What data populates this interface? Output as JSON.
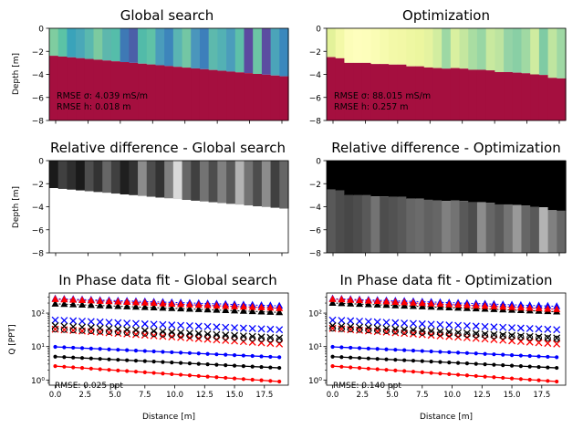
{
  "chart_data": [
    {
      "type": "heatmap",
      "title": "Global search",
      "ylabel": "Depth [m]",
      "yticks": [
        "0",
        "−2",
        "−4",
        "−6",
        "−8"
      ],
      "ylim": [
        -8,
        0
      ],
      "xlim": [
        0,
        20
      ],
      "layer_color": "#a50f3f",
      "column_colors": [
        "#7fcda0",
        "#5bc3a6",
        "#3aa3ba",
        "#4aa8b8",
        "#5ab8af",
        "#7ccaa0",
        "#5db7ad",
        "#55bdaa",
        "#3e79b5",
        "#4b5fa8",
        "#52bba9",
        "#5fc2a7",
        "#4a9cbb",
        "#3d85bb",
        "#5ab4b3",
        "#73c6a4",
        "#4a96bc",
        "#3d7fbb",
        "#5db9ad",
        "#53b1b4",
        "#4b9dbb",
        "#5ec0a9",
        "#5c4aa0",
        "#6cc5a5",
        "#5b4da1",
        "#4ba4b9",
        "#3a88bd"
      ],
      "boundary_depth": [
        -2.35,
        -4.2
      ],
      "annotations": [
        "RMSE σ: 4.039 mS/m",
        "RMSE h: 0.018 m"
      ]
    },
    {
      "type": "heatmap",
      "title": "Optimization",
      "yticks": [
        "0",
        "−2",
        "−4",
        "−6",
        "−8"
      ],
      "ylim": [
        -8,
        0
      ],
      "xlim": [
        0,
        20
      ],
      "layer_color": "#a50f3f",
      "column_colors": [
        "#e3f29a",
        "#f3f9a8",
        "#fcfdb9",
        "#fefebd",
        "#fdfebb",
        "#fafdb5",
        "#f6fbae",
        "#f3f9a8",
        "#f2f8a6",
        "#eef7a2",
        "#ecf69f",
        "#e5f3a0",
        "#d2eda0",
        "#9dd8a4",
        "#d9f0a0",
        "#c4e79f",
        "#a9dda2",
        "#98d6a4",
        "#c8e99f",
        "#bde4a0",
        "#94d3a6",
        "#89cfa5",
        "#a0d9a3",
        "#cfeca0",
        "#7fcba4",
        "#bfe5a0",
        "#9fd8a4"
      ],
      "step_depths": [
        -2.5,
        -2.6,
        -3.0,
        -3.0,
        -3.0,
        -3.1,
        -3.1,
        -3.15,
        -3.15,
        -3.3,
        -3.3,
        -3.4,
        -3.45,
        -3.5,
        -3.45,
        -3.5,
        -3.6,
        -3.6,
        -3.65,
        -3.8,
        -3.8,
        -3.85,
        -3.9,
        -4.0,
        -4.05,
        -4.3,
        -4.35
      ],
      "annotations": [
        "RMSE σ: 88.015 mS/m",
        "RMSE h: 0.257 m"
      ]
    },
    {
      "type": "heatmap",
      "title": "Relative difference - Global search",
      "ylabel": "Depth [m]",
      "yticks": [
        "0",
        "−2",
        "−4",
        "−6",
        "−8"
      ],
      "ylim": [
        -8,
        0
      ],
      "xlim": [
        0,
        20
      ],
      "boundary_depth": [
        -2.35,
        -4.2
      ],
      "upper_intensity": [
        0.1,
        0.25,
        0.18,
        0.1,
        0.3,
        0.2,
        0.4,
        0.25,
        0.12,
        0.2,
        0.55,
        0.3,
        0.2,
        0.5,
        0.85,
        0.4,
        0.25,
        0.45,
        0.3,
        0.5,
        0.35,
        0.7,
        0.45,
        0.3,
        0.55,
        0.25,
        0.4
      ],
      "lower_intensity": 1.0
    },
    {
      "type": "heatmap",
      "title": "Relative difference - Optimization",
      "yticks": [
        "0",
        "−2",
        "−4",
        "−6",
        "−8"
      ],
      "ylim": [
        -8,
        0
      ],
      "xlim": [
        0,
        20
      ],
      "step_depths": [
        -2.5,
        -2.6,
        -3.0,
        -3.0,
        -3.0,
        -3.1,
        -3.1,
        -3.15,
        -3.15,
        -3.3,
        -3.3,
        -3.4,
        -3.45,
        -3.5,
        -3.45,
        -3.5,
        -3.6,
        -3.6,
        -3.65,
        -3.8,
        -3.8,
        -3.85,
        -3.9,
        -4.0,
        -4.05,
        -4.3,
        -4.35
      ],
      "upper_intensity": 0.0,
      "lower_intensity": [
        0.35,
        0.3,
        0.28,
        0.3,
        0.35,
        0.45,
        0.3,
        0.32,
        0.35,
        0.4,
        0.42,
        0.38,
        0.4,
        0.5,
        0.45,
        0.35,
        0.3,
        0.55,
        0.4,
        0.35,
        0.45,
        0.6,
        0.4,
        0.35,
        0.7,
        0.5,
        0.4
      ]
    },
    {
      "type": "scatter",
      "title": "In Phase data fit - Global search",
      "xlabel": "Distance [m]",
      "ylabel": "Q [PPT]",
      "yscale": "log",
      "ylim": [
        0.7,
        400
      ],
      "xlim": [
        -0.5,
        19.5
      ],
      "xticks": [
        "0.0",
        "2.5",
        "5.0",
        "7.5",
        "10.0",
        "12.5",
        "15.0",
        "17.5"
      ],
      "yticks": [
        "10⁰",
        "10¹",
        "10²"
      ],
      "x": [
        0,
        0.75,
        1.5,
        2.25,
        3,
        3.75,
        4.5,
        5.25,
        6,
        6.75,
        7.5,
        8.25,
        9,
        9.75,
        10.5,
        11.25,
        12,
        12.75,
        13.5,
        14.25,
        15,
        15.75,
        16.5,
        17.25,
        18,
        18.75
      ],
      "series": [
        {
          "marker": "triangle",
          "color": "#0000ff",
          "start": 270,
          "end": 165
        },
        {
          "marker": "triangle",
          "color": "#000000",
          "start": 190,
          "end": 105
        },
        {
          "marker": "triangle",
          "color": "#ff0000",
          "start": 260,
          "end": 140
        },
        {
          "marker": "x",
          "color": "#0000ff",
          "start": 62,
          "end": 32
        },
        {
          "marker": "x",
          "color": "#000000",
          "start": 42,
          "end": 18
        },
        {
          "marker": "x",
          "color": "#ff0000",
          "start": 33,
          "end": 12
        },
        {
          "marker": "circle-open",
          "color": "#000000",
          "start": 33,
          "end": 16
        },
        {
          "marker": "line-dot",
          "color": "#0000ff",
          "start": 9.8,
          "end": 4.8
        },
        {
          "marker": "line-dot",
          "color": "#000000",
          "start": 5.0,
          "end": 2.3
        },
        {
          "marker": "line-dot",
          "color": "#ff0000",
          "start": 2.6,
          "end": 0.9
        }
      ],
      "annotations": [
        "RMSE: 0.025 ppt"
      ]
    },
    {
      "type": "scatter",
      "title": "In Phase data fit - Optimization",
      "xlabel": "Distance [m]",
      "yscale": "log",
      "ylim": [
        0.7,
        400
      ],
      "xlim": [
        -0.5,
        19.5
      ],
      "xticks": [
        "0.0",
        "2.5",
        "5.0",
        "7.5",
        "10.0",
        "12.5",
        "15.0",
        "17.5"
      ],
      "yticks": [
        "10⁰",
        "10¹",
        "10²"
      ],
      "x": [
        0,
        0.75,
        1.5,
        2.25,
        3,
        3.75,
        4.5,
        5.25,
        6,
        6.75,
        7.5,
        8.25,
        9,
        9.75,
        10.5,
        11.25,
        12,
        12.75,
        13.5,
        14.25,
        15,
        15.75,
        16.5,
        17.25,
        18,
        18.75
      ],
      "series": [
        {
          "marker": "triangle",
          "color": "#0000ff",
          "start": 270,
          "end": 160
        },
        {
          "marker": "triangle",
          "color": "#000000",
          "start": 200,
          "end": 110
        },
        {
          "marker": "triangle",
          "color": "#ff0000",
          "start": 260,
          "end": 130
        },
        {
          "marker": "x",
          "color": "#0000ff",
          "start": 62,
          "end": 32
        },
        {
          "marker": "x",
          "color": "#000000",
          "start": 42,
          "end": 18
        },
        {
          "marker": "x",
          "color": "#ff0000",
          "start": 35,
          "end": 12
        },
        {
          "marker": "circle-open",
          "color": "#000000",
          "start": 35,
          "end": 17
        },
        {
          "marker": "line-dot",
          "color": "#0000ff",
          "start": 9.8,
          "end": 4.8
        },
        {
          "marker": "line-dot",
          "color": "#000000",
          "start": 5.0,
          "end": 2.3
        },
        {
          "marker": "line-dot",
          "color": "#ff0000",
          "start": 2.6,
          "end": 0.9
        }
      ],
      "annotations": [
        "RMSE: 0.140 ppt"
      ]
    }
  ]
}
